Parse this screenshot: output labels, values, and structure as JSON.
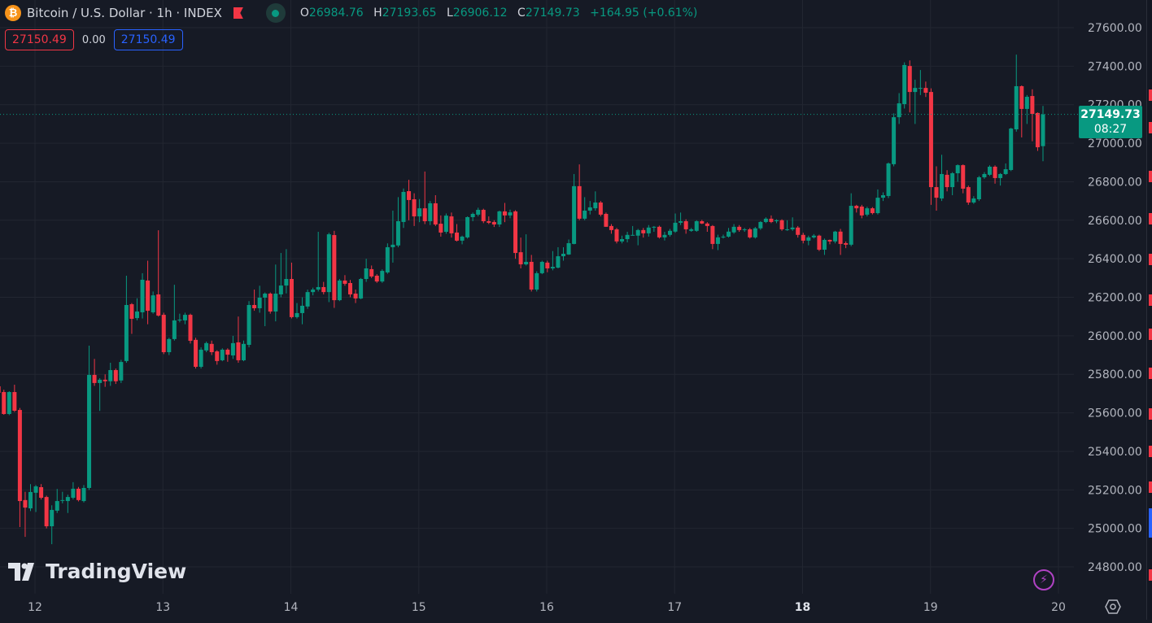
{
  "header": {
    "symbol_icon": "bitcoin-icon",
    "title": "Bitcoin / U.S. Dollar · 1h · INDEX",
    "ohlc": {
      "o_label": "O",
      "o": "26984.76",
      "h_label": "H",
      "h": "27193.65",
      "l_label": "L",
      "l": "26906.12",
      "c_label": "C",
      "c": "27149.73",
      "change": "+164.95 (+0.61%)"
    },
    "sell_price": "27150.49",
    "spread": "0.00",
    "buy_price": "27150.49"
  },
  "current_price": {
    "price": "27149.73",
    "countdown": "08:27"
  },
  "logo": "TradingView",
  "colors": {
    "up": "#089981",
    "down": "#f23645",
    "background": "#161a25",
    "grid": "#222631",
    "buy": "#2962ff"
  },
  "chart_data": {
    "type": "candlestick",
    "interval": "1h",
    "ylim": [
      24700,
      27700
    ],
    "y_ticks": [
      24800,
      25000,
      25200,
      25400,
      25600,
      25800,
      26000,
      26200,
      26400,
      26600,
      26800,
      27000,
      27200,
      27400,
      27600
    ],
    "y_tick_labels": [
      "24800.00",
      "25000.00",
      "25200.00",
      "25400.00",
      "25600.00",
      "25800.00",
      "26000.00",
      "26200.00",
      "26400.00",
      "26600.00",
      "26800.00",
      "27000.00",
      "27200.00",
      "27400.00",
      "27600.00"
    ],
    "x_tick_labels": [
      "12",
      "13",
      "14",
      "15",
      "16",
      "17",
      "18",
      "19",
      "20"
    ],
    "x_tick_bold": "18",
    "grid": true,
    "candles_ohlc": [
      [
        25738,
        25746,
        25700,
        25704
      ],
      [
        25708,
        25720,
        25590,
        25594
      ],
      [
        25594,
        25712,
        25588,
        25708
      ],
      [
        25708,
        25746,
        25605,
        25611
      ],
      [
        25615,
        25625,
        25007,
        25142
      ],
      [
        25147,
        25190,
        24956,
        25108
      ],
      [
        25104,
        25230,
        25090,
        25189
      ],
      [
        25185,
        25225,
        25085,
        25218
      ],
      [
        25214,
        25230,
        25150,
        25159
      ],
      [
        25163,
        25170,
        25000,
        25011
      ],
      [
        25011,
        25120,
        24918,
        25096
      ],
      [
        25092,
        25205,
        25080,
        25142
      ],
      [
        25147,
        25190,
        25130,
        25147
      ],
      [
        25142,
        25175,
        25080,
        25163
      ],
      [
        25159,
        25240,
        25150,
        25206
      ],
      [
        25206,
        25215,
        25140,
        25147
      ],
      [
        25142,
        25225,
        25135,
        25210
      ],
      [
        25210,
        25949,
        25200,
        25797
      ],
      [
        25797,
        25880,
        25740,
        25755
      ],
      [
        25755,
        25780,
        25610,
        25772
      ],
      [
        25772,
        25800,
        25735,
        25764
      ],
      [
        25764,
        25860,
        25740,
        25822
      ],
      [
        25822,
        25830,
        25750,
        25764
      ],
      [
        25768,
        25875,
        25755,
        25864
      ],
      [
        25869,
        26312,
        25860,
        26160
      ],
      [
        26164,
        26170,
        26010,
        26088
      ],
      [
        26092,
        26195,
        26080,
        26126
      ],
      [
        26122,
        26325,
        26090,
        26291
      ],
      [
        26287,
        26390,
        26060,
        26130
      ],
      [
        26122,
        26230,
        26115,
        26210
      ],
      [
        26215,
        26548,
        26100,
        26105
      ],
      [
        26109,
        26120,
        25905,
        25915
      ],
      [
        25915,
        25990,
        25900,
        25983
      ],
      [
        25983,
        26265,
        25975,
        26080
      ],
      [
        26084,
        26115,
        26070,
        26084
      ],
      [
        26080,
        26120,
        26060,
        26109
      ],
      [
        26109,
        26115,
        25960,
        25974
      ],
      [
        25979,
        25990,
        25830,
        25839
      ],
      [
        25839,
        25940,
        25830,
        25928
      ],
      [
        25924,
        25970,
        25915,
        25962
      ],
      [
        25958,
        25975,
        25900,
        25915
      ],
      [
        25919,
        25925,
        25850,
        25869
      ],
      [
        25873,
        25935,
        25868,
        25928
      ],
      [
        25928,
        25935,
        25865,
        25902
      ],
      [
        25898,
        26000,
        25880,
        25962
      ],
      [
        25966,
        26100,
        25860,
        25873
      ],
      [
        25873,
        25975,
        25868,
        25958
      ],
      [
        25953,
        26180,
        25940,
        26160
      ],
      [
        26160,
        26240,
        26130,
        26143
      ],
      [
        26143,
        26260,
        26120,
        26198
      ],
      [
        26198,
        26225,
        26050,
        26219
      ],
      [
        26219,
        26225,
        26115,
        26126
      ],
      [
        26126,
        26370,
        26075,
        26219
      ],
      [
        26215,
        26430,
        26200,
        26261
      ],
      [
        26261,
        26450,
        26220,
        26295
      ],
      [
        26295,
        26380,
        26090,
        26097
      ],
      [
        26097,
        26170,
        26090,
        26118
      ],
      [
        26118,
        26200,
        26060,
        26156
      ],
      [
        26152,
        26240,
        26140,
        26227
      ],
      [
        26227,
        26250,
        26210,
        26240
      ],
      [
        26240,
        26540,
        26230,
        26253
      ],
      [
        26253,
        26280,
        26215,
        26227
      ],
      [
        26227,
        26535,
        26175,
        26527
      ],
      [
        26523,
        26545,
        26145,
        26185
      ],
      [
        26185,
        26295,
        26180,
        26287
      ],
      [
        26287,
        26315,
        26260,
        26270
      ],
      [
        26274,
        26290,
        26200,
        26215
      ],
      [
        26219,
        26240,
        26170,
        26194
      ],
      [
        26194,
        26300,
        26190,
        26295
      ],
      [
        26295,
        26400,
        26280,
        26350
      ],
      [
        26346,
        26365,
        26300,
        26308
      ],
      [
        26312,
        26320,
        26275,
        26282
      ],
      [
        26282,
        26345,
        26275,
        26337
      ],
      [
        26329,
        26480,
        26322,
        26460
      ],
      [
        26460,
        26650,
        26380,
        26473
      ],
      [
        26469,
        26720,
        26460,
        26595
      ],
      [
        26591,
        26765,
        26560,
        26747
      ],
      [
        26751,
        26810,
        26600,
        26705
      ],
      [
        26709,
        26740,
        26570,
        26620
      ],
      [
        26620,
        26710,
        26590,
        26662
      ],
      [
        26662,
        26853,
        26580,
        26595
      ],
      [
        26595,
        26700,
        26575,
        26688
      ],
      [
        26688,
        26730,
        26570,
        26578
      ],
      [
        26582,
        26625,
        26515,
        26536
      ],
      [
        26540,
        26635,
        26530,
        26624
      ],
      [
        26620,
        26640,
        26510,
        26532
      ],
      [
        26536,
        26580,
        26490,
        26494
      ],
      [
        26494,
        26520,
        26475,
        26515
      ],
      [
        26511,
        26620,
        26505,
        26616
      ],
      [
        26616,
        26640,
        26595,
        26633
      ],
      [
        26629,
        26665,
        26620,
        26654
      ],
      [
        26654,
        26660,
        26585,
        26595
      ],
      [
        26595,
        26620,
        26580,
        26587
      ],
      [
        26591,
        26600,
        26565,
        26578
      ],
      [
        26578,
        26650,
        26565,
        26646
      ],
      [
        26646,
        26690,
        26590,
        26625
      ],
      [
        26625,
        26655,
        26610,
        26641
      ],
      [
        26646,
        26652,
        26400,
        26430
      ],
      [
        26434,
        26510,
        26350,
        26371
      ],
      [
        26371,
        26527,
        26365,
        26384
      ],
      [
        26384,
        26420,
        26230,
        26240
      ],
      [
        26240,
        26335,
        26230,
        26325
      ],
      [
        26325,
        26390,
        26320,
        26384
      ],
      [
        26380,
        26390,
        26330,
        26350
      ],
      [
        26350,
        26440,
        26340,
        26358
      ],
      [
        26354,
        26460,
        26350,
        26413
      ],
      [
        26413,
        26460,
        26390,
        26426
      ],
      [
        26422,
        26500,
        26420,
        26481
      ],
      [
        26477,
        26840,
        26475,
        26777
      ],
      [
        26777,
        26890,
        26600,
        26608
      ],
      [
        26608,
        26720,
        26600,
        26650
      ],
      [
        26650,
        26700,
        26630,
        26667
      ],
      [
        26662,
        26750,
        26650,
        26692
      ],
      [
        26692,
        26700,
        26620,
        26629
      ],
      [
        26633,
        26640,
        26566,
        26566
      ],
      [
        26570,
        26580,
        26530,
        26549
      ],
      [
        26553,
        26560,
        26480,
        26490
      ],
      [
        26490,
        26520,
        26480,
        26502
      ],
      [
        26502,
        26540,
        26485,
        26524
      ],
      [
        26524,
        26570,
        26520,
        26524
      ],
      [
        26520,
        26555,
        26470,
        26549
      ],
      [
        26549,
        26560,
        26510,
        26532
      ],
      [
        26532,
        26575,
        26515,
        26562
      ],
      [
        26562,
        26570,
        26540,
        26566
      ],
      [
        26566,
        26572,
        26505,
        26511
      ],
      [
        26511,
        26540,
        26495,
        26524
      ],
      [
        26524,
        26555,
        26515,
        26545
      ],
      [
        26541,
        26635,
        26535,
        26587
      ],
      [
        26587,
        26640,
        26575,
        26595
      ],
      [
        26595,
        26605,
        26530,
        26553
      ],
      [
        26545,
        26560,
        26540,
        26553
      ],
      [
        26545,
        26600,
        26540,
        26595
      ],
      [
        26595,
        26602,
        26580,
        26583
      ],
      [
        26583,
        26590,
        26540,
        26570
      ],
      [
        26570,
        26575,
        26450,
        26477
      ],
      [
        26477,
        26525,
        26445,
        26511
      ],
      [
        26511,
        26525,
        26505,
        26515
      ],
      [
        26515,
        26560,
        26510,
        26541
      ],
      [
        26537,
        26580,
        26530,
        26566
      ],
      [
        26566,
        26575,
        26540,
        26549
      ],
      [
        26553,
        26560,
        26540,
        26553
      ],
      [
        26553,
        26560,
        26505,
        26511
      ],
      [
        26511,
        26565,
        26505,
        26558
      ],
      [
        26558,
        26595,
        26550,
        26591
      ],
      [
        26591,
        26615,
        26585,
        26608
      ],
      [
        26608,
        26625,
        26585,
        26591
      ],
      [
        26595,
        26605,
        26585,
        26600
      ],
      [
        26600,
        26605,
        26545,
        26553
      ],
      [
        26553,
        26600,
        26545,
        26553
      ],
      [
        26553,
        26615,
        26545,
        26562
      ],
      [
        26562,
        26570,
        26510,
        26524
      ],
      [
        26524,
        26535,
        26480,
        26494
      ],
      [
        26494,
        26520,
        26470,
        26511
      ],
      [
        26511,
        26528,
        26505,
        26520
      ],
      [
        26520,
        26525,
        26440,
        26447
      ],
      [
        26447,
        26505,
        26420,
        26498
      ],
      [
        26498,
        26500,
        26475,
        26490
      ],
      [
        26490,
        26545,
        26480,
        26541
      ],
      [
        26541,
        26555,
        26420,
        26477
      ],
      [
        26481,
        26490,
        26455,
        26473
      ],
      [
        26473,
        26740,
        26465,
        26675
      ],
      [
        26675,
        26680,
        26640,
        26662
      ],
      [
        26671,
        26680,
        26610,
        26625
      ],
      [
        26629,
        26670,
        26620,
        26662
      ],
      [
        26662,
        26668,
        26630,
        26637
      ],
      [
        26637,
        26760,
        26630,
        26717
      ],
      [
        26717,
        26745,
        26700,
        26730
      ],
      [
        26726,
        26900,
        26715,
        26895
      ],
      [
        26891,
        27155,
        26880,
        27135
      ],
      [
        27135,
        27260,
        27100,
        27207
      ],
      [
        27203,
        27420,
        27180,
        27406
      ],
      [
        27401,
        27430,
        27160,
        27266
      ],
      [
        27266,
        27330,
        27100,
        27287
      ],
      [
        27287,
        27380,
        27250,
        27287
      ],
      [
        27287,
        27320,
        27240,
        27262
      ],
      [
        27266,
        27285,
        26680,
        26772
      ],
      [
        26772,
        26880,
        26650,
        26717
      ],
      [
        26713,
        26940,
        26700,
        26840
      ],
      [
        26836,
        26860,
        26750,
        26772
      ],
      [
        26772,
        26850,
        26730,
        26844
      ],
      [
        26844,
        26890,
        26800,
        26886
      ],
      [
        26886,
        26890,
        26740,
        26764
      ],
      [
        26772,
        26780,
        26680,
        26692
      ],
      [
        26692,
        26725,
        26685,
        26713
      ],
      [
        26709,
        26830,
        26700,
        26823
      ],
      [
        26823,
        26850,
        26815,
        26840
      ],
      [
        26836,
        26885,
        26830,
        26878
      ],
      [
        26878,
        26885,
        26790,
        26819
      ],
      [
        26819,
        26845,
        26780,
        26840
      ],
      [
        26840,
        26895,
        26835,
        26865
      ],
      [
        26861,
        27080,
        26855,
        27076
      ],
      [
        27072,
        27460,
        27060,
        27296
      ],
      [
        27296,
        27300,
        27030,
        27178
      ],
      [
        27178,
        27250,
        27100,
        27241
      ],
      [
        27245,
        27280,
        27010,
        27152
      ],
      [
        27157,
        27160,
        26960,
        26979
      ],
      [
        26984.76,
        27193.65,
        26906.12,
        27149.73
      ]
    ]
  }
}
